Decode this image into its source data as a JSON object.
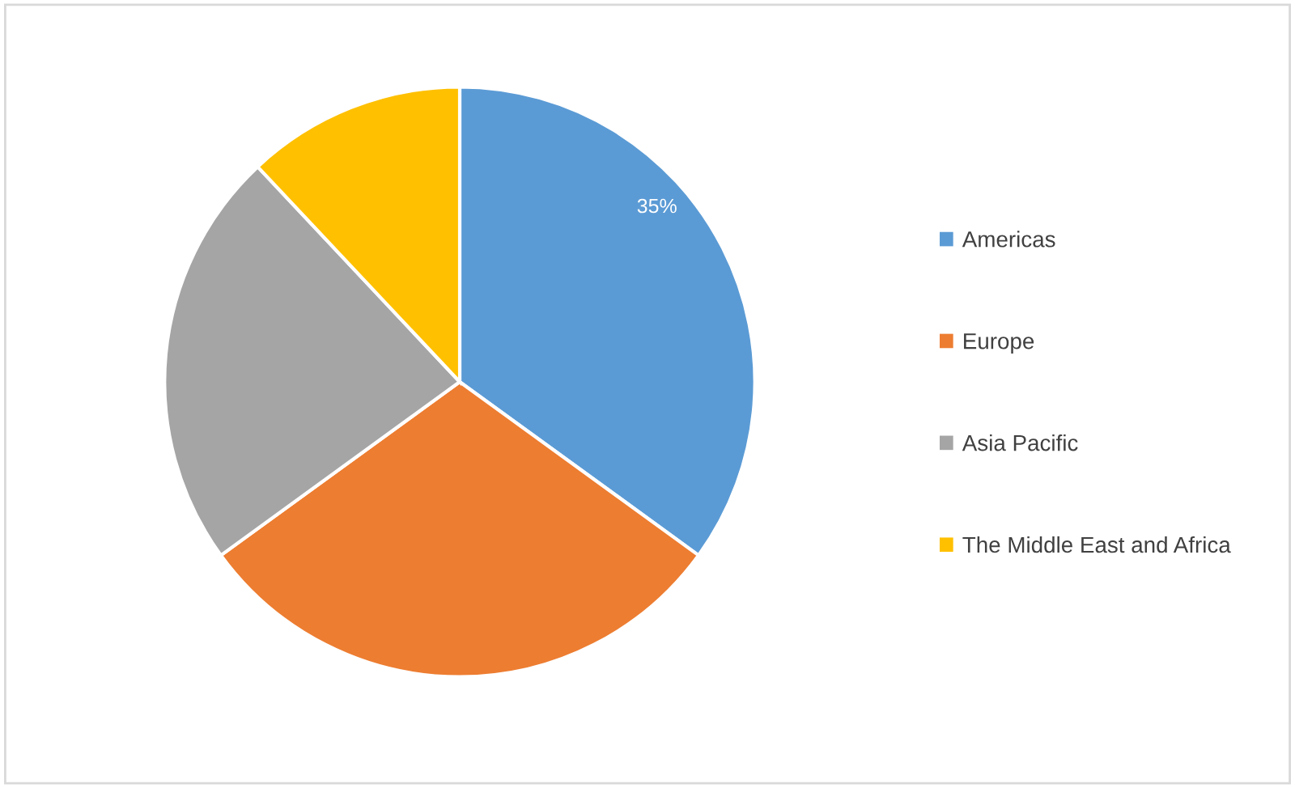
{
  "chart_data": {
    "type": "pie",
    "categories": [
      "Americas",
      "Europe",
      "Asia Pacific",
      "The Middle East and Africa"
    ],
    "values": [
      35,
      30,
      23,
      12
    ],
    "colors": [
      "#5b9bd5",
      "#ed7d31",
      "#a5a5a5",
      "#ffc000"
    ],
    "value_labels": [
      "35%",
      null,
      null,
      null
    ],
    "legend": "right"
  }
}
